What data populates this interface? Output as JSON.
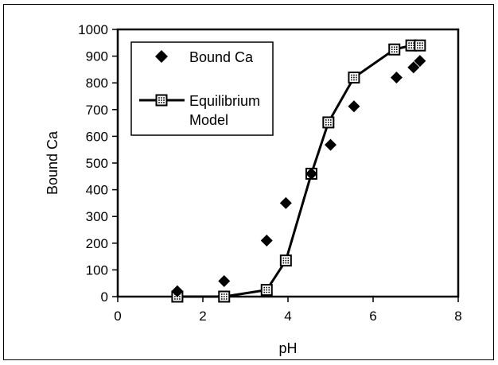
{
  "chart_data": {
    "type": "scatter",
    "xlabel": "pH",
    "ylabel": "Bound Ca",
    "xlim": [
      0,
      8
    ],
    "ylim": [
      0,
      1000
    ],
    "x_ticks": [
      "0",
      "2",
      "4",
      "6",
      "8"
    ],
    "y_ticks": [
      "0",
      "100",
      "200",
      "300",
      "400",
      "500",
      "600",
      "700",
      "800",
      "900",
      "1000"
    ],
    "grid": false,
    "legend_position": "top-left",
    "series": [
      {
        "name": "Bound Ca",
        "style": "scatter",
        "marker": "diamond",
        "color": "#000000",
        "points": [
          {
            "x": 1.4,
            "y": 20
          },
          {
            "x": 2.5,
            "y": 58
          },
          {
            "x": 3.5,
            "y": 210
          },
          {
            "x": 3.95,
            "y": 350
          },
          {
            "x": 4.55,
            "y": 460
          },
          {
            "x": 5.0,
            "y": 568
          },
          {
            "x": 5.55,
            "y": 712
          },
          {
            "x": 6.55,
            "y": 820
          },
          {
            "x": 6.95,
            "y": 858
          },
          {
            "x": 7.1,
            "y": 882
          }
        ]
      },
      {
        "name": "Equilibrium Model",
        "name_lines": [
          "Equilibrium",
          "Model"
        ],
        "style": "line",
        "marker": "dotted-square",
        "color": "#000000",
        "points": [
          {
            "x": 1.4,
            "y": 0
          },
          {
            "x": 2.5,
            "y": 0
          },
          {
            "x": 3.5,
            "y": 25
          },
          {
            "x": 3.95,
            "y": 135
          },
          {
            "x": 4.55,
            "y": 460
          },
          {
            "x": 4.95,
            "y": 652
          },
          {
            "x": 5.55,
            "y": 820
          },
          {
            "x": 6.5,
            "y": 925
          },
          {
            "x": 6.9,
            "y": 940
          },
          {
            "x": 7.1,
            "y": 940
          }
        ]
      }
    ]
  }
}
